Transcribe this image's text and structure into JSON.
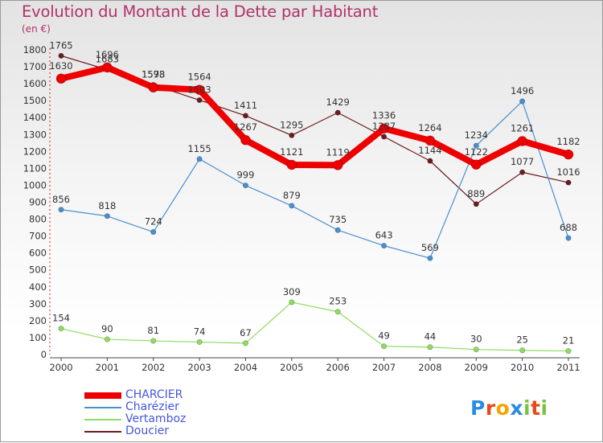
{
  "title": "Evolution du Montant de la Dette par Habitant",
  "unit": "(en €)",
  "logo": {
    "letters": [
      "P",
      "r",
      "o",
      "x",
      "i",
      "t",
      "i"
    ],
    "colors": [
      "#2a8be0",
      "#e64a19",
      "#f4a300",
      "#2a8be0",
      "#7cc242",
      "#e64a19",
      "#7cc242"
    ]
  },
  "chart_data": {
    "type": "line",
    "x": [
      2000,
      2001,
      2002,
      2003,
      2004,
      2005,
      2006,
      2007,
      2008,
      2009,
      2010,
      2011
    ],
    "ylim": [
      0,
      1800
    ],
    "yticks": [
      0,
      100,
      200,
      300,
      400,
      500,
      600,
      700,
      800,
      900,
      1000,
      1100,
      1200,
      1300,
      1400,
      1500,
      1600,
      1700,
      1800
    ],
    "grid": false,
    "legend_position": "bottom-left",
    "series": [
      {
        "name": "Doucier",
        "color": "#6b1b1f",
        "line_width": 1.2,
        "marker_radius": 3.2,
        "values": [
          1765,
          1683,
          1593,
          1503,
          1411,
          1295,
          1429,
          1287,
          1144,
          889,
          1077,
          1016
        ]
      },
      {
        "name": "Charézier",
        "color": "#4a8fd0",
        "line_width": 1.2,
        "marker_radius": 3.2,
        "values": [
          856,
          818,
          724,
          1155,
          999,
          879,
          735,
          643,
          569,
          1234,
          1496,
          688
        ]
      },
      {
        "name": "Vertamboz",
        "color": "#8edc62",
        "line_width": 1.2,
        "marker_radius": 3.2,
        "values": [
          154,
          90,
          81,
          74,
          67,
          309,
          253,
          49,
          44,
          30,
          25,
          21
        ]
      },
      {
        "name": "CHARCIER",
        "color": "#ee0000",
        "line_width": 8,
        "marker_radius": 6,
        "values": [
          1630,
          1696,
          1578,
          1564,
          1267,
          1121,
          1119,
          1336,
          1264,
          1122,
          1261,
          1182
        ]
      }
    ],
    "legend_order": [
      "CHARCIER",
      "Charézier",
      "Vertamboz",
      "Doucier"
    ]
  }
}
